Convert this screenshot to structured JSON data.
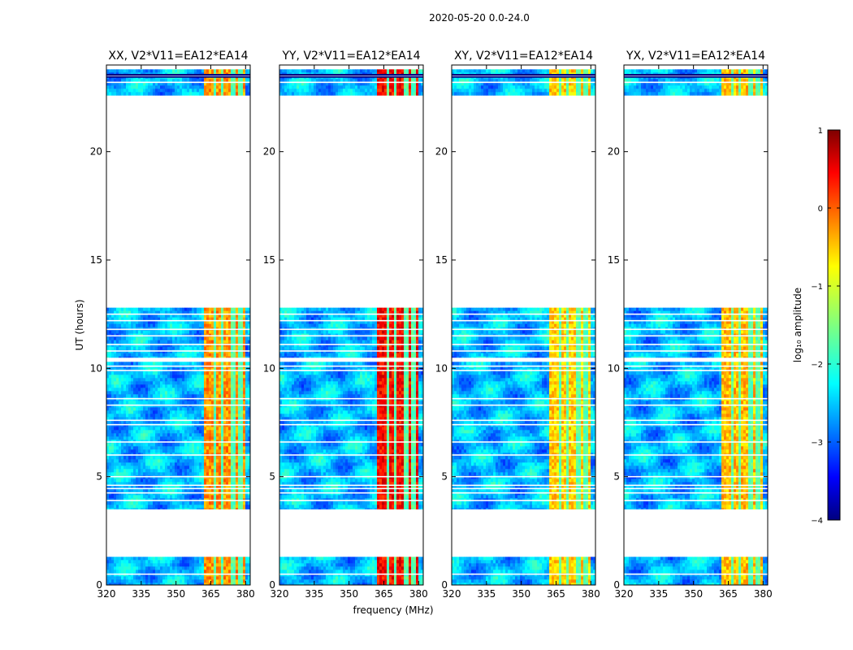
{
  "figure_title": "2020-05-20 0.0-24.0",
  "xlabel": "frequency (MHz)",
  "ylabel": "UT (hours)",
  "chart_data": {
    "type": "heatmap",
    "xlim": [
      320,
      382
    ],
    "ylim": [
      0,
      24
    ],
    "x_ticks": [
      320,
      335,
      350,
      365,
      380
    ],
    "y_ticks": [
      0,
      5,
      10,
      15,
      20
    ],
    "panels": [
      {
        "title": "XX, V2*V11=EA12*EA14",
        "high_band_strength": 0.78
      },
      {
        "title": "YY, V2*V11=EA12*EA14",
        "high_band_strength": 0.92
      },
      {
        "title": "XY, V2*V11=EA12*EA14",
        "high_band_strength": 0.72
      },
      {
        "title": "YX, V2*V11=EA12*EA14",
        "high_band_strength": 0.74
      }
    ],
    "data_blocks_hours": [
      [
        0,
        1.3
      ],
      [
        3.5,
        10.3
      ],
      [
        10.5,
        12.8
      ],
      [
        22.6,
        23.8
      ]
    ],
    "gap_lines_hours": [
      0.5,
      3.9,
      4.25,
      4.45,
      4.6,
      5.0,
      6.0,
      6.6,
      7.4,
      7.6,
      8.3,
      8.6,
      9.9,
      10.1,
      10.8,
      11.1,
      11.5,
      11.8,
      12.2,
      12.5,
      23.2,
      23.5
    ],
    "high_band_mhz": [
      362,
      380
    ],
    "colorbar": {
      "label": "log₁₀ amplitude",
      "min": -4,
      "max": 1,
      "ticks": [
        1,
        0,
        -1,
        -2,
        -3,
        -4
      ],
      "colormap": "jet"
    }
  }
}
